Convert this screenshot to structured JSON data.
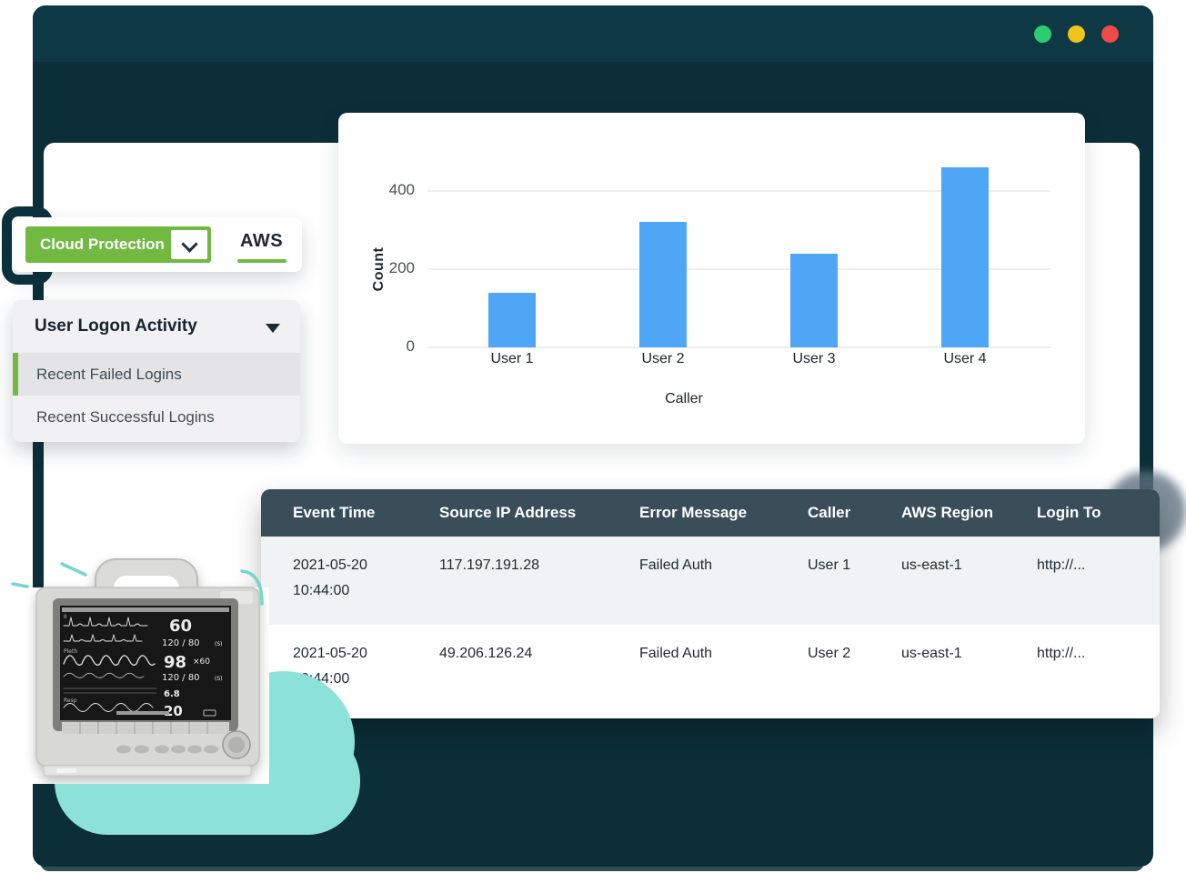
{
  "colors": {
    "accent_green": "#72B942",
    "bar_blue": "#4EA6F4",
    "cloud_teal": "#8CE1D8",
    "header_slate": "#3A4E5A",
    "window_teal": "#0C2E38",
    "titlebar_teal": "#0E3843"
  },
  "window": {
    "traffic_lights": [
      "#2ECC71",
      "#EFC41B",
      "#EF4B46"
    ]
  },
  "toolbar": {
    "dropdown_label": "Cloud Protection",
    "provider_label": "AWS"
  },
  "menu": {
    "title": "User Logon Activity",
    "items": [
      {
        "label": "Recent Failed Logins",
        "active": true
      },
      {
        "label": "Recent Successful Logins",
        "active": false
      }
    ]
  },
  "chart_data": {
    "type": "bar",
    "categories": [
      "User 1",
      "User 2",
      "User 3",
      "User 4"
    ],
    "values": [
      140,
      320,
      240,
      460
    ],
    "title": "",
    "xlabel": "Caller",
    "ylabel": "Count",
    "yticks": [
      0,
      200,
      400
    ],
    "ylim": [
      0,
      460
    ],
    "grid": true,
    "legend": false,
    "bar_color": "#4EA6F4"
  },
  "table": {
    "columns": [
      "Event Time",
      "Source IP Address",
      "Error Message",
      "Caller",
      "AWS Region",
      "Login To"
    ],
    "rows": [
      {
        "event_time": "2021-05-20\n10:44:00",
        "source_ip": "117.197.191.28",
        "error_message": "Failed Auth",
        "caller": "User 1",
        "aws_region": "us-east-1",
        "login_to": "http://..."
      },
      {
        "event_time": "2021-05-20\n10:44:00",
        "source_ip": "49.206.126.24",
        "error_message": "Failed Auth",
        "caller": "User 2",
        "aws_region": "us-east-1",
        "login_to": "http://..."
      }
    ]
  },
  "monitor": {
    "hr": "60",
    "nibp_top": "120 / 80",
    "spo2": "98",
    "pulse": "×60",
    "nibp_bottom": "120 / 80",
    "cvp": "6.8",
    "resp": "20",
    "trace_labels": [
      "II",
      "Pleth",
      "Resp"
    ]
  }
}
